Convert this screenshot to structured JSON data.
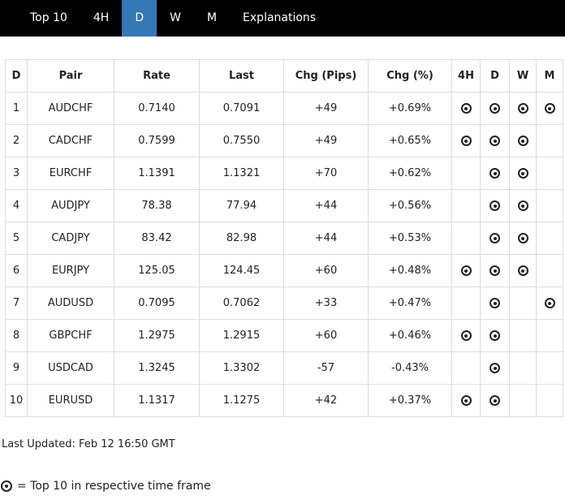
{
  "nav": {
    "items": [
      {
        "label": "Top 10",
        "active": false
      },
      {
        "label": "4H",
        "active": false
      },
      {
        "label": "D",
        "active": true
      },
      {
        "label": "W",
        "active": false
      },
      {
        "label": "M",
        "active": false
      },
      {
        "label": "Explanations",
        "active": false
      }
    ]
  },
  "table": {
    "headers": [
      {
        "key": "rank",
        "label": "D"
      },
      {
        "key": "pair",
        "label": "Pair"
      },
      {
        "key": "rate",
        "label": "Rate"
      },
      {
        "key": "last",
        "label": "Last"
      },
      {
        "key": "chg-pips",
        "label": "Chg (Pips)"
      },
      {
        "key": "chg-pct",
        "label": "Chg (%)"
      },
      {
        "key": "4h",
        "label": "4H"
      },
      {
        "key": "d",
        "label": "D"
      },
      {
        "key": "w",
        "label": "W"
      },
      {
        "key": "m",
        "label": "M"
      }
    ],
    "rows": [
      {
        "rank": "1",
        "pair": "AUDCHF",
        "rate": "0.7140",
        "last": "0.7091",
        "chg_pips": "+49",
        "chg_pct": "+0.69%",
        "top_in": [
          "4H",
          "D",
          "W",
          "M"
        ]
      },
      {
        "rank": "2",
        "pair": "CADCHF",
        "rate": "0.7599",
        "last": "0.7550",
        "chg_pips": "+49",
        "chg_pct": "+0.65%",
        "top_in": [
          "4H",
          "D",
          "W"
        ]
      },
      {
        "rank": "3",
        "pair": "EURCHF",
        "rate": "1.1391",
        "last": "1.1321",
        "chg_pips": "+70",
        "chg_pct": "+0.62%",
        "top_in": [
          "D",
          "W"
        ]
      },
      {
        "rank": "4",
        "pair": "AUDJPY",
        "rate": "78.38",
        "last": "77.94",
        "chg_pips": "+44",
        "chg_pct": "+0.56%",
        "top_in": [
          "D",
          "W"
        ]
      },
      {
        "rank": "5",
        "pair": "CADJPY",
        "rate": "83.42",
        "last": "82.98",
        "chg_pips": "+44",
        "chg_pct": "+0.53%",
        "top_in": [
          "D",
          "W"
        ]
      },
      {
        "rank": "6",
        "pair": "EURJPY",
        "rate": "125.05",
        "last": "124.45",
        "chg_pips": "+60",
        "chg_pct": "+0.48%",
        "top_in": [
          "4H",
          "D",
          "W"
        ]
      },
      {
        "rank": "7",
        "pair": "AUDUSD",
        "rate": "0.7095",
        "last": "0.7062",
        "chg_pips": "+33",
        "chg_pct": "+0.47%",
        "top_in": [
          "D",
          "M"
        ]
      },
      {
        "rank": "8",
        "pair": "GBPCHF",
        "rate": "1.2975",
        "last": "1.2915",
        "chg_pips": "+60",
        "chg_pct": "+0.46%",
        "top_in": [
          "4H",
          "D"
        ]
      },
      {
        "rank": "9",
        "pair": "USDCAD",
        "rate": "1.3245",
        "last": "1.3302",
        "chg_pips": "-57",
        "chg_pct": "-0.43%",
        "top_in": [
          "D"
        ]
      },
      {
        "rank": "10",
        "pair": "EURUSD",
        "rate": "1.1317",
        "last": "1.1275",
        "chg_pips": "+42",
        "chg_pct": "+0.37%",
        "top_in": [
          "4H",
          "D"
        ]
      }
    ],
    "timeframe_columns": [
      "4H",
      "D",
      "W",
      "M"
    ]
  },
  "footer": {
    "last_updated": "Last Updated: Feb 12 16:50 GMT",
    "legend_icon": "bullseye-icon",
    "legend_text": "= Top 10 in respective time frame"
  },
  "colors": {
    "accent": "#3478b5",
    "icon": "#222222",
    "nav_bg": "#000000",
    "border": "#dddddd"
  }
}
